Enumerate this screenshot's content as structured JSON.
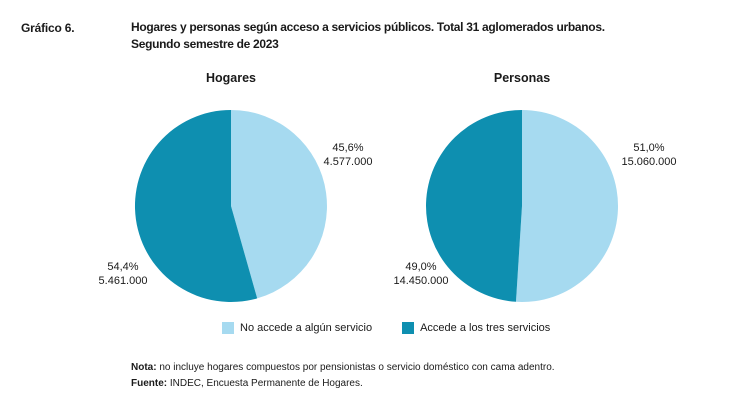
{
  "figure": {
    "label": "Gráfico 6.",
    "title_line1": "Hogares y personas según acceso a servicios públicos. Total 31 aglomerados urbanos.",
    "title_line2": "Segundo semestre de 2023"
  },
  "chart_data": [
    {
      "type": "pie",
      "title": "Hogares",
      "slices": [
        {
          "name": "No accede a algún servicio",
          "percent_label": "45,6%",
          "value_label": "4.577.000",
          "value": 4577000,
          "percent": 45.6,
          "color": "#a6daf0"
        },
        {
          "name": "Accede a los tres servicios",
          "percent_label": "54,4%",
          "value_label": "5.461.000",
          "value": 5461000,
          "percent": 54.4,
          "color": "#0e8fb0"
        }
      ]
    },
    {
      "type": "pie",
      "title": "Personas",
      "slices": [
        {
          "name": "No accede a algún servicio",
          "percent_label": "51,0%",
          "value_label": "15.060.000",
          "value": 15060000,
          "percent": 51.0,
          "color": "#a6daf0"
        },
        {
          "name": "Accede a los tres servicios",
          "percent_label": "49,0%",
          "value_label": "14.450.000",
          "value": 14450000,
          "percent": 49.0,
          "color": "#0e8fb0"
        }
      ]
    }
  ],
  "legend": [
    {
      "label": "No accede a algún servicio",
      "color": "#a6daf0"
    },
    {
      "label": "Accede a los tres servicios",
      "color": "#0e8fb0"
    }
  ],
  "notes": {
    "nota_key": "Nota:",
    "nota_text": " no incluye hogares compuestos por pensionistas o servicio doméstico con cama adentro.",
    "fuente_key": "Fuente:",
    "fuente_text": " INDEC, Encuesta Permanente de Hogares."
  }
}
